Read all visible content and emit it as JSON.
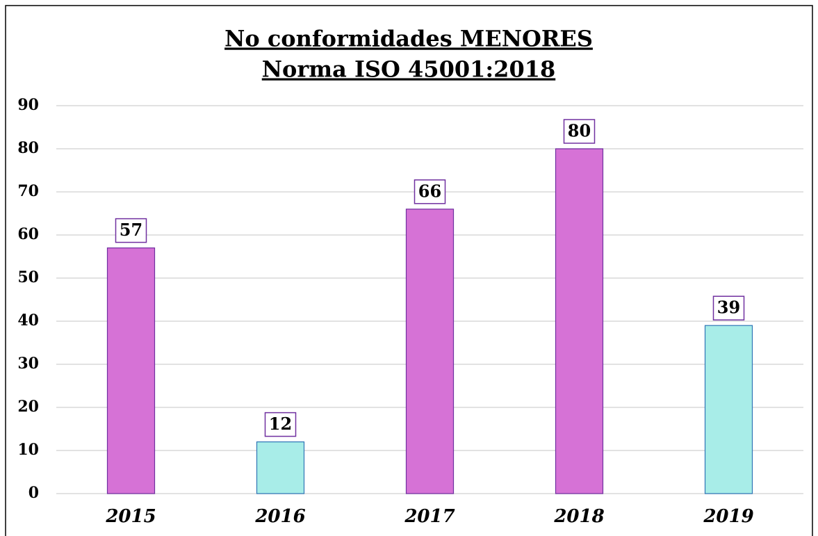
{
  "chart_data": {
    "type": "bar",
    "title": "No conformidades MENORES",
    "subtitle": "Norma ISO 45001:2018",
    "categories": [
      "2015",
      "2016",
      "2017",
      "2018",
      "2019"
    ],
    "values": [
      57,
      12,
      66,
      80,
      39
    ],
    "colors": [
      "#d672d6",
      "#a8ede8",
      "#d672d6",
      "#d672d6",
      "#a8ede8"
    ],
    "ylim": [
      0,
      90
    ],
    "yticks": [
      0,
      10,
      20,
      30,
      40,
      50,
      60,
      70,
      80,
      90
    ],
    "grid": true
  }
}
